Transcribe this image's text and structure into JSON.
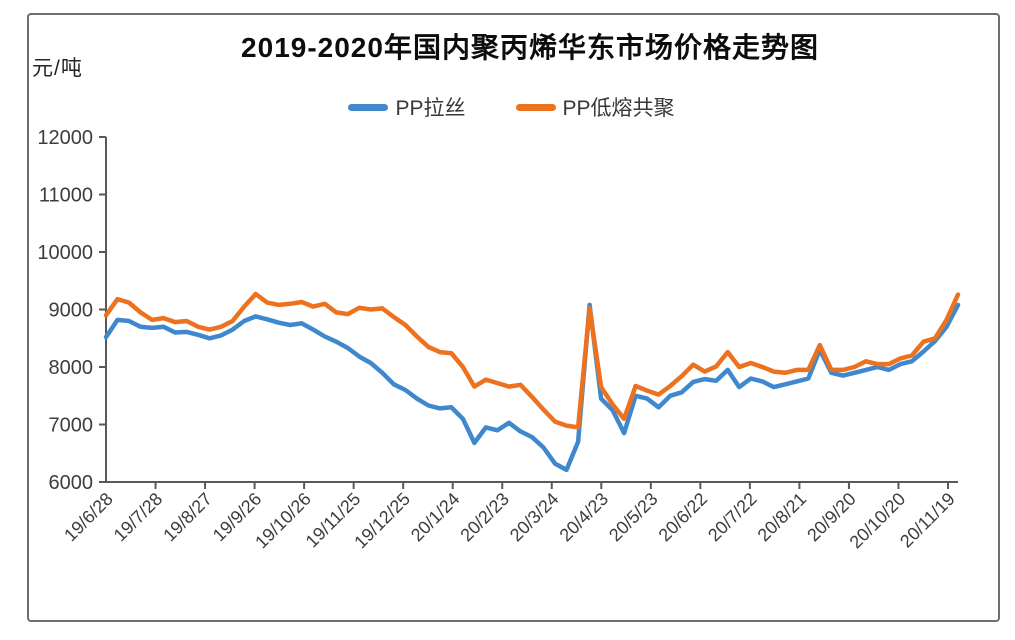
{
  "chart_data": {
    "type": "line",
    "title": "2019-2020年国内聚丙烯华东市场价格走势图",
    "y_axis_unit": "元/吨",
    "ylim": [
      6000,
      12000
    ],
    "y_ticks": [
      6000,
      7000,
      8000,
      9000,
      10000,
      11000,
      12000
    ],
    "x_tick_labels": [
      "19/6/28",
      "19/7/28",
      "19/8/27",
      "19/9/26",
      "19/10/26",
      "19/11/25",
      "19/12/25",
      "20/1/24",
      "20/2/23",
      "20/3/24",
      "20/4/23",
      "20/5/23",
      "20/6/22",
      "20/7/22",
      "20/8/21",
      "20/9/20",
      "20/10/20",
      "20/11/19"
    ],
    "grid": "off",
    "legend_position": "top-center",
    "colors": {
      "axis": "#595959",
      "tick_label": "#3d3d3d",
      "title": "#0d0d0d",
      "frame_border": "#6e6e6e",
      "background": "#ffffff"
    },
    "series": [
      {
        "name": "PP拉丝",
        "color": "#3F88CE",
        "values": [
          8520,
          8820,
          8800,
          8700,
          8680,
          8700,
          8600,
          8610,
          8560,
          8500,
          8550,
          8650,
          8800,
          8880,
          8830,
          8770,
          8730,
          8760,
          8650,
          8530,
          8440,
          8330,
          8180,
          8070,
          7900,
          7700,
          7600,
          7450,
          7330,
          7280,
          7300,
          7100,
          6680,
          6950,
          6900,
          7030,
          6880,
          6780,
          6600,
          6320,
          6210,
          6700,
          9080,
          7450,
          7250,
          6850,
          7500,
          7450,
          7300,
          7500,
          7560,
          7740,
          7790,
          7760,
          7950,
          7650,
          7800,
          7750,
          7650,
          7700,
          7750,
          7800,
          8300,
          7900,
          7850,
          7900,
          7950,
          8000,
          7950,
          8050,
          8100,
          8270,
          8450,
          8700,
          9080
        ]
      },
      {
        "name": "PP低熔共聚",
        "color": "#EC7220",
        "values": [
          8900,
          9180,
          9120,
          8950,
          8820,
          8850,
          8780,
          8800,
          8700,
          8650,
          8700,
          8800,
          9050,
          9270,
          9120,
          9080,
          9100,
          9130,
          9050,
          9100,
          8950,
          8920,
          9030,
          9000,
          9020,
          8870,
          8730,
          8530,
          8350,
          8260,
          8240,
          8000,
          7660,
          7780,
          7720,
          7660,
          7690,
          7480,
          7260,
          7050,
          6980,
          6950,
          9020,
          7650,
          7350,
          7100,
          7670,
          7590,
          7520,
          7670,
          7840,
          8040,
          7920,
          8010,
          8260,
          8000,
          8070,
          8000,
          7920,
          7900,
          7950,
          7950,
          8380,
          7950,
          7950,
          8000,
          8100,
          8050,
          8050,
          8150,
          8200,
          8440,
          8500,
          8820,
          9260
        ]
      }
    ]
  }
}
